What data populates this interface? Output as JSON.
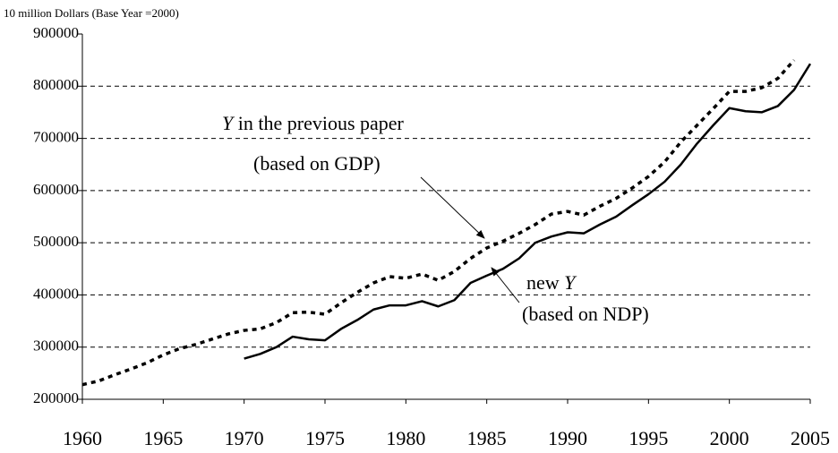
{
  "chart_data": {
    "type": "line",
    "title": "10 million Dollars (Base Year =2000)",
    "x": [
      1960,
      1961,
      1962,
      1963,
      1964,
      1965,
      1966,
      1967,
      1968,
      1969,
      1970,
      1971,
      1972,
      1973,
      1974,
      1975,
      1976,
      1977,
      1978,
      1979,
      1980,
      1981,
      1982,
      1983,
      1984,
      1985,
      1986,
      1987,
      1988,
      1989,
      1990,
      1991,
      1992,
      1993,
      1994,
      1995,
      1996,
      1997,
      1998,
      1999,
      2000,
      2001,
      2002,
      2003,
      2004,
      2005
    ],
    "series": [
      {
        "color": "#000000",
        "style": "dotted",
        "values": [
          228000,
          235000,
          247000,
          258000,
          270000,
          285000,
          297000,
          305000,
          315000,
          325000,
          332000,
          335000,
          347000,
          366000,
          367000,
          363000,
          385000,
          405000,
          423000,
          435000,
          432000,
          440000,
          428000,
          445000,
          470000,
          490000,
          503000,
          518000,
          535000,
          555000,
          560000,
          553000,
          570000,
          585000,
          605000,
          627000,
          655000,
          693000,
          725000,
          757000,
          790000,
          790000,
          797000,
          815000,
          850000,
          null
        ]
      },
      {
        "color": "#000000",
        "style": "solid",
        "values": [
          null,
          null,
          null,
          null,
          null,
          null,
          null,
          null,
          null,
          null,
          278000,
          287000,
          300000,
          320000,
          315000,
          313000,
          335000,
          352000,
          372000,
          380000,
          380000,
          388000,
          378000,
          390000,
          423000,
          437000,
          450000,
          470000,
          500000,
          512000,
          520000,
          518000,
          535000,
          550000,
          572000,
          593000,
          617000,
          650000,
          690000,
          725000,
          758000,
          752000,
          750000,
          762000,
          793000,
          843000
        ]
      }
    ],
    "xlim": [
      1960,
      2005
    ],
    "xticks": [
      1960,
      1965,
      1970,
      1975,
      1980,
      1985,
      1990,
      1995,
      2000,
      2005
    ],
    "ylim": [
      200000,
      900000
    ],
    "yticks": [
      200000,
      300000,
      400000,
      500000,
      600000,
      700000,
      800000,
      900000
    ],
    "grid": true,
    "annotations": [
      {
        "var": "Y",
        "label": "in the previous paper",
        "note": "(based on GDP)"
      },
      {
        "prefix": "new",
        "var": "Y",
        "note": "(based on NDP)"
      }
    ]
  }
}
